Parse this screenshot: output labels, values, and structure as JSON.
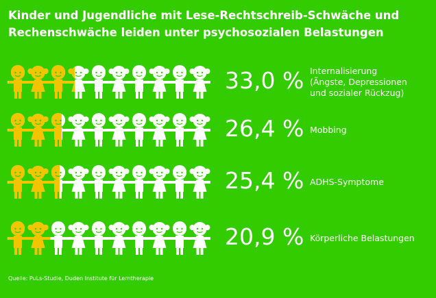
{
  "chart_data": {
    "type": "pictogram",
    "title": "Kinder und Jugendliche mit Lese-Rechtschreib-Schwäche und\nRechenschwäche leiden unter psychosozialen Belastungen",
    "categories": [
      "Internalisierung\n(Ängste, Depressionen\nund sozialer Rückzug)",
      "Mobbing",
      "ADHS-Symptome",
      "Körperliche Belastungen"
    ],
    "values": [
      33.0,
      26.4,
      25.4,
      20.9
    ],
    "value_labels": [
      "33,0 %",
      "26,4 %",
      "25,4 %",
      "20,9 %"
    ],
    "xlim": [
      0,
      100
    ],
    "color": "#f2c500",
    "background": "#33cc00",
    "source": "Quelle: PuLs-Studie, Duden Institute für Lerntherapie"
  }
}
